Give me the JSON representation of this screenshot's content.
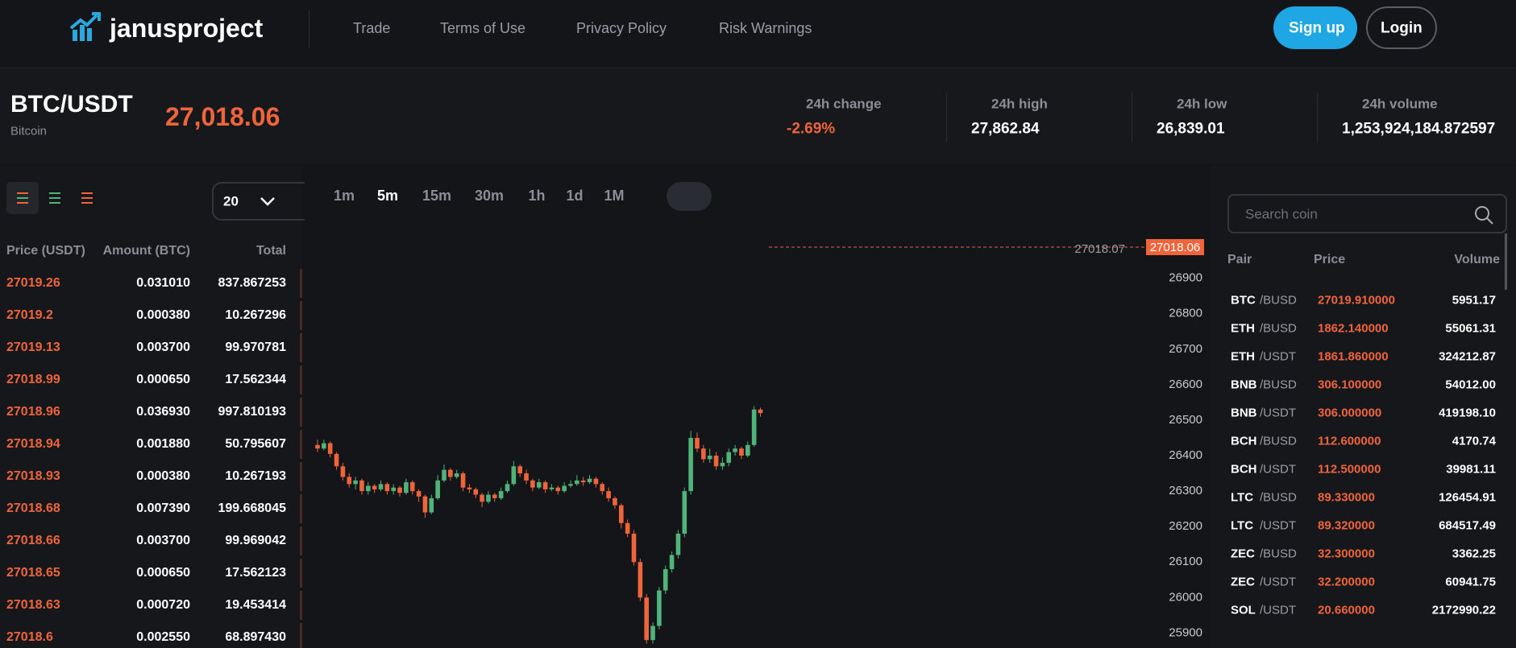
{
  "header": {
    "logo": "janusproject",
    "nav": [
      "Trade",
      "Terms of Use",
      "Privacy Policy",
      "Risk Warnings"
    ],
    "signup": "Sign up",
    "login": "Login"
  },
  "ticker": {
    "pair": "BTC/USDT",
    "name": "Bitcoin",
    "price": "27,018.06",
    "stats": [
      {
        "label": "24h change",
        "value": "-2.69%"
      },
      {
        "label": "24h high",
        "value": "27,862.84"
      },
      {
        "label": "24h low",
        "value": "26,839.01"
      },
      {
        "label": "24h volume",
        "value": "1,253,924,184.872597"
      }
    ]
  },
  "orderbook": {
    "depth": "20",
    "headers": [
      "Price (USDT)",
      "Amount (BTC)",
      "Total"
    ],
    "rows": [
      [
        "27019.26",
        "0.031010",
        "837.867253"
      ],
      [
        "27019.2",
        "0.000380",
        "10.267296"
      ],
      [
        "27019.13",
        "0.003700",
        "99.970781"
      ],
      [
        "27018.99",
        "0.000650",
        "17.562344"
      ],
      [
        "27018.96",
        "0.036930",
        "997.810193"
      ],
      [
        "27018.94",
        "0.001880",
        "50.795607"
      ],
      [
        "27018.93",
        "0.000380",
        "10.267193"
      ],
      [
        "27018.68",
        "0.007390",
        "199.668045"
      ],
      [
        "27018.66",
        "0.003700",
        "99.969042"
      ],
      [
        "27018.65",
        "0.000650",
        "17.562123"
      ],
      [
        "27018.63",
        "0.000720",
        "19.453414"
      ],
      [
        "27018.6",
        "0.002550",
        "68.897430"
      ]
    ]
  },
  "intervals": [
    "1m",
    "5m",
    "15m",
    "30m",
    "1h",
    "1d",
    "1M"
  ],
  "active_interval": "5m",
  "price_tag": "27018.06",
  "crosshair_label": "27018.07",
  "chart_data": {
    "type": "candlestick",
    "up_color": "#4fb37a",
    "down_color": "#f0643c",
    "ylim": [
      25860,
      27040
    ],
    "yticks": [
      26900,
      26800,
      26700,
      26600,
      26500,
      26400,
      26300,
      26200,
      26100,
      26000,
      25900
    ],
    "ohlc": [
      [
        26430,
        26445,
        26410,
        26420
      ],
      [
        26420,
        26445,
        26415,
        26435
      ],
      [
        26435,
        26440,
        26395,
        26405
      ],
      [
        26405,
        26410,
        26360,
        26370
      ],
      [
        26370,
        26380,
        26330,
        26340
      ],
      [
        26340,
        26350,
        26310,
        26320
      ],
      [
        26320,
        26340,
        26305,
        26330
      ],
      [
        26330,
        26335,
        26290,
        26300
      ],
      [
        26300,
        26325,
        26290,
        26315
      ],
      [
        26315,
        26320,
        26295,
        26305
      ],
      [
        26305,
        26330,
        26300,
        26320
      ],
      [
        26320,
        26325,
        26290,
        26300
      ],
      [
        26300,
        26320,
        26290,
        26310
      ],
      [
        26310,
        26315,
        26285,
        26295
      ],
      [
        26295,
        26335,
        26290,
        26325
      ],
      [
        26325,
        26330,
        26290,
        26300
      ],
      [
        26300,
        26305,
        26270,
        26285
      ],
      [
        26285,
        26290,
        26225,
        26240
      ],
      [
        26240,
        26290,
        26235,
        26280
      ],
      [
        26280,
        26345,
        26275,
        26330
      ],
      [
        26330,
        26375,
        26325,
        26360
      ],
      [
        26360,
        26365,
        26330,
        26340
      ],
      [
        26340,
        26360,
        26335,
        26350
      ],
      [
        26350,
        26355,
        26300,
        26310
      ],
      [
        26310,
        26320,
        26295,
        26305
      ],
      [
        26305,
        26310,
        26280,
        26290
      ],
      [
        26290,
        26295,
        26255,
        26270
      ],
      [
        26270,
        26300,
        26265,
        26290
      ],
      [
        26290,
        26295,
        26270,
        26280
      ],
      [
        26280,
        26310,
        26275,
        26300
      ],
      [
        26300,
        26330,
        26295,
        26320
      ],
      [
        26320,
        26385,
        26315,
        26370
      ],
      [
        26370,
        26375,
        26340,
        26350
      ],
      [
        26350,
        26360,
        26320,
        26330
      ],
      [
        26330,
        26335,
        26300,
        26310
      ],
      [
        26310,
        26335,
        26305,
        26325
      ],
      [
        26325,
        26330,
        26295,
        26305
      ],
      [
        26305,
        26320,
        26300,
        26310
      ],
      [
        26310,
        26315,
        26290,
        26300
      ],
      [
        26300,
        26325,
        26295,
        26315
      ],
      [
        26315,
        26330,
        26310,
        26320
      ],
      [
        26320,
        26345,
        26315,
        26330
      ],
      [
        26330,
        26340,
        26315,
        26325
      ],
      [
        26325,
        26345,
        26320,
        26335
      ],
      [
        26335,
        26340,
        26310,
        26320
      ],
      [
        26320,
        26325,
        26290,
        26300
      ],
      [
        26300,
        26310,
        26270,
        26280
      ],
      [
        26280,
        26285,
        26250,
        26260
      ],
      [
        26260,
        26265,
        26195,
        26210
      ],
      [
        26210,
        26220,
        26170,
        26180
      ],
      [
        26180,
        26190,
        26090,
        26100
      ],
      [
        26100,
        26110,
        25990,
        26000
      ],
      [
        26000,
        26010,
        25870,
        25880
      ],
      [
        25880,
        25930,
        25870,
        25920
      ],
      [
        25920,
        26030,
        25910,
        26020
      ],
      [
        26020,
        26090,
        26010,
        26080
      ],
      [
        26080,
        26130,
        26070,
        26120
      ],
      [
        26120,
        26190,
        26110,
        26180
      ],
      [
        26180,
        26310,
        26170,
        26300
      ],
      [
        26300,
        26470,
        26290,
        26450
      ],
      [
        26450,
        26465,
        26410,
        26420
      ],
      [
        26420,
        26430,
        26380,
        26390
      ],
      [
        26390,
        26420,
        26380,
        26400
      ],
      [
        26400,
        26410,
        26360,
        26370
      ],
      [
        26370,
        26395,
        26360,
        26380
      ],
      [
        26380,
        26420,
        26370,
        26410
      ],
      [
        26410,
        26430,
        26400,
        26420
      ],
      [
        26420,
        26425,
        26390,
        26400
      ],
      [
        26400,
        26440,
        26395,
        26430
      ],
      [
        26430,
        26540,
        26425,
        26530
      ],
      [
        26530,
        26535,
        26510,
        26520
      ]
    ]
  },
  "market": {
    "search": "Search coin",
    "headers": [
      "Pair",
      "Price",
      "Volume"
    ],
    "rows": [
      [
        "BTC",
        "/BUSD",
        "27019.910000",
        "5951.17"
      ],
      [
        "ETH",
        "/BUSD",
        "1862.140000",
        "55061.31"
      ],
      [
        "ETH",
        "/USDT",
        "1861.860000",
        "324212.87"
      ],
      [
        "BNB",
        "/BUSD",
        "306.100000",
        "54012.00"
      ],
      [
        "BNB",
        "/USDT",
        "306.000000",
        "419198.10"
      ],
      [
        "BCH",
        "/BUSD",
        "112.600000",
        "4170.74"
      ],
      [
        "BCH",
        "/USDT",
        "112.500000",
        "39981.11"
      ],
      [
        "LTC",
        "/BUSD",
        "89.330000",
        "126454.91"
      ],
      [
        "LTC",
        "/USDT",
        "89.320000",
        "684517.49"
      ],
      [
        "ZEC",
        "/BUSD",
        "32.300000",
        "3362.25"
      ],
      [
        "ZEC",
        "/USDT",
        "32.200000",
        "60941.75"
      ],
      [
        "SOL",
        "/USDT",
        "20.660000",
        "2172990.22"
      ]
    ]
  }
}
